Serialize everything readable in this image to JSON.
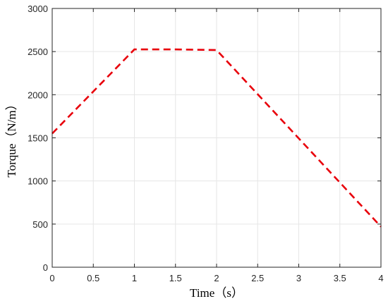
{
  "chart_data": {
    "type": "line",
    "title": "",
    "xlabel": "Time（s）",
    "ylabel": "Torque（N/m）",
    "xlim": [
      0,
      4
    ],
    "ylim": [
      0,
      3000
    ],
    "xticks": [
      0,
      0.5,
      1,
      1.5,
      2,
      2.5,
      3,
      3.5,
      4
    ],
    "xtick_labels": [
      "0",
      "0.5",
      "1",
      "1.5",
      "2",
      "2.5",
      "3",
      "3.5",
      "4"
    ],
    "yticks": [
      0,
      500,
      1000,
      1500,
      2000,
      2500,
      3000
    ],
    "ytick_labels": [
      "0",
      "500",
      "1000",
      "1500",
      "2000",
      "2500",
      "3000"
    ],
    "grid": true,
    "series": [
      {
        "color": "#e8000b",
        "line_style": "dashed",
        "x": [
          0,
          1,
          1.25,
          1.5,
          1.75,
          2,
          4
        ],
        "y": [
          1550,
          2525,
          2525,
          2525,
          2522,
          2518,
          470
        ]
      }
    ]
  }
}
